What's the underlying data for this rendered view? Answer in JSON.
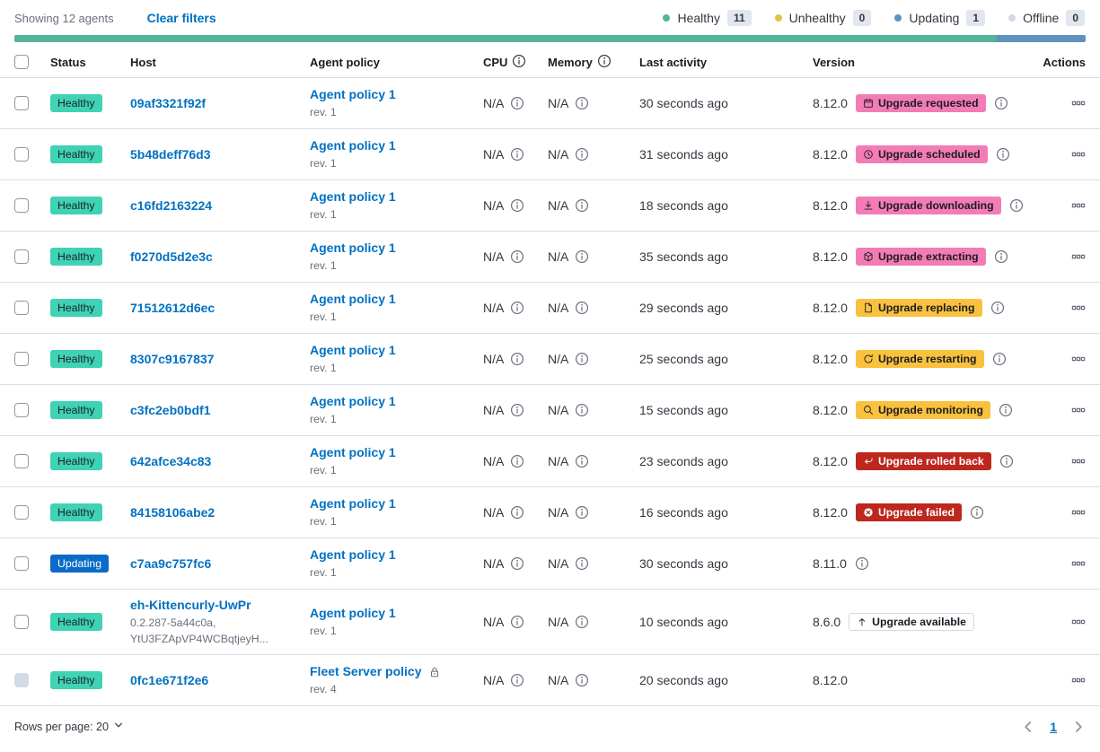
{
  "toolbar": {
    "showing": "Showing 12 agents",
    "clear_filters": "Clear filters"
  },
  "legend": [
    {
      "label": "Healthy",
      "count": "11",
      "color": "#54b399"
    },
    {
      "label": "Unhealthy",
      "count": "0",
      "color": "#e2c443"
    },
    {
      "label": "Updating",
      "count": "1",
      "color": "#6092c0"
    },
    {
      "label": "Offline",
      "count": "0",
      "color": "#d3dae6"
    }
  ],
  "health_bar": {
    "segments": [
      {
        "status": "healthy",
        "color": "#54b399",
        "fraction": 0.9167
      },
      {
        "status": "updating",
        "color": "#6092c0",
        "fraction": 0.0833
      }
    ]
  },
  "table": {
    "headers": {
      "status": "Status",
      "host": "Host",
      "policy": "Agent policy",
      "cpu": "CPU",
      "memory": "Memory",
      "last_activity": "Last activity",
      "version": "Version",
      "actions": "Actions"
    },
    "rows": [
      {
        "status": "Healthy",
        "status_type": "healthy",
        "checkbox_disabled": false,
        "host": "09af3321f92f",
        "host_sub": [],
        "policy": "Agent policy 1",
        "policy_rev": "rev. 1",
        "policy_locked": false,
        "cpu": "N/A",
        "memory": "N/A",
        "last_activity": "30 seconds ago",
        "version": "8.12.0",
        "upgrade": {
          "label": "Upgrade requested",
          "style": "pink",
          "icon": "calendar-icon"
        },
        "info": true
      },
      {
        "status": "Healthy",
        "status_type": "healthy",
        "checkbox_disabled": false,
        "host": "5b48deff76d3",
        "host_sub": [],
        "policy": "Agent policy 1",
        "policy_rev": "rev. 1",
        "policy_locked": false,
        "cpu": "N/A",
        "memory": "N/A",
        "last_activity": "31 seconds ago",
        "version": "8.12.0",
        "upgrade": {
          "label": "Upgrade scheduled",
          "style": "pink",
          "icon": "clock-icon"
        },
        "info": true
      },
      {
        "status": "Healthy",
        "status_type": "healthy",
        "checkbox_disabled": false,
        "host": "c16fd2163224",
        "host_sub": [],
        "policy": "Agent policy 1",
        "policy_rev": "rev. 1",
        "policy_locked": false,
        "cpu": "N/A",
        "memory": "N/A",
        "last_activity": "18 seconds ago",
        "version": "8.12.0",
        "upgrade": {
          "label": "Upgrade downloading",
          "style": "pink",
          "icon": "download-icon"
        },
        "info": true
      },
      {
        "status": "Healthy",
        "status_type": "healthy",
        "checkbox_disabled": false,
        "host": "f0270d5d2e3c",
        "host_sub": [],
        "policy": "Agent policy 1",
        "policy_rev": "rev. 1",
        "policy_locked": false,
        "cpu": "N/A",
        "memory": "N/A",
        "last_activity": "35 seconds ago",
        "version": "8.12.0",
        "upgrade": {
          "label": "Upgrade extracting",
          "style": "pink",
          "icon": "package-icon"
        },
        "info": true
      },
      {
        "status": "Healthy",
        "status_type": "healthy",
        "checkbox_disabled": false,
        "host": "71512612d6ec",
        "host_sub": [],
        "policy": "Agent policy 1",
        "policy_rev": "rev. 1",
        "policy_locked": false,
        "cpu": "N/A",
        "memory": "N/A",
        "last_activity": "29 seconds ago",
        "version": "8.12.0",
        "upgrade": {
          "label": "Upgrade replacing",
          "style": "yellow",
          "icon": "document-icon"
        },
        "info": true
      },
      {
        "status": "Healthy",
        "status_type": "healthy",
        "checkbox_disabled": false,
        "host": "8307c9167837",
        "host_sub": [],
        "policy": "Agent policy 1",
        "policy_rev": "rev. 1",
        "policy_locked": false,
        "cpu": "N/A",
        "memory": "N/A",
        "last_activity": "25 seconds ago",
        "version": "8.12.0",
        "upgrade": {
          "label": "Upgrade restarting",
          "style": "yellow",
          "icon": "refresh-icon"
        },
        "info": true
      },
      {
        "status": "Healthy",
        "status_type": "healthy",
        "checkbox_disabled": false,
        "host": "c3fc2eb0bdf1",
        "host_sub": [],
        "policy": "Agent policy 1",
        "policy_rev": "rev. 1",
        "policy_locked": false,
        "cpu": "N/A",
        "memory": "N/A",
        "last_activity": "15 seconds ago",
        "version": "8.12.0",
        "upgrade": {
          "label": "Upgrade monitoring",
          "style": "yellow",
          "icon": "inspect-icon"
        },
        "info": true
      },
      {
        "status": "Healthy",
        "status_type": "healthy",
        "checkbox_disabled": false,
        "host": "642afce34c83",
        "host_sub": [],
        "policy": "Agent policy 1",
        "policy_rev": "rev. 1",
        "policy_locked": false,
        "cpu": "N/A",
        "memory": "N/A",
        "last_activity": "23 seconds ago",
        "version": "8.12.0",
        "upgrade": {
          "label": "Upgrade rolled back",
          "style": "red",
          "icon": "return-icon"
        },
        "info": true
      },
      {
        "status": "Healthy",
        "status_type": "healthy",
        "checkbox_disabled": false,
        "host": "84158106abe2",
        "host_sub": [],
        "policy": "Agent policy 1",
        "policy_rev": "rev. 1",
        "policy_locked": false,
        "cpu": "N/A",
        "memory": "N/A",
        "last_activity": "16 seconds ago",
        "version": "8.12.0",
        "upgrade": {
          "label": "Upgrade failed",
          "style": "red",
          "icon": "error-icon"
        },
        "info": true
      },
      {
        "status": "Updating",
        "status_type": "updating",
        "checkbox_disabled": false,
        "host": "c7aa9c757fc6",
        "host_sub": [],
        "policy": "Agent policy 1",
        "policy_rev": "rev. 1",
        "policy_locked": false,
        "cpu": "N/A",
        "memory": "N/A",
        "last_activity": "30 seconds ago",
        "version": "8.11.0",
        "upgrade": null,
        "info": true
      },
      {
        "status": "Healthy",
        "status_type": "healthy",
        "checkbox_disabled": false,
        "host": "eh-Kittencurly-UwPr",
        "host_sub": [
          "0.2.287-5a44c0a,",
          "YtU3FZApVP4WCBqtjeyH..."
        ],
        "policy": "Agent policy 1",
        "policy_rev": "rev. 1",
        "policy_locked": false,
        "cpu": "N/A",
        "memory": "N/A",
        "last_activity": "10 seconds ago",
        "version": "8.6.0",
        "upgrade": {
          "label": "Upgrade available",
          "style": "outline",
          "icon": "arrow-up-icon"
        },
        "info": false
      },
      {
        "status": "Healthy",
        "status_type": "healthy",
        "checkbox_disabled": true,
        "host": "0fc1e671f2e6",
        "host_sub": [],
        "policy": "Fleet Server policy",
        "policy_rev": "rev. 4",
        "policy_locked": true,
        "cpu": "N/A",
        "memory": "N/A",
        "last_activity": "20 seconds ago",
        "version": "8.12.0",
        "upgrade": null,
        "info": false
      }
    ]
  },
  "footer": {
    "rows_per_page": "Rows per page: 20",
    "page": "1"
  },
  "colors": {
    "link": "#0071c2",
    "badge_healthy": "#40d2b4",
    "badge_updating": "#0a6bc9",
    "badge_pink": "#f47cb5",
    "badge_yellow": "#f9c13d",
    "badge_red": "#bd271e"
  }
}
